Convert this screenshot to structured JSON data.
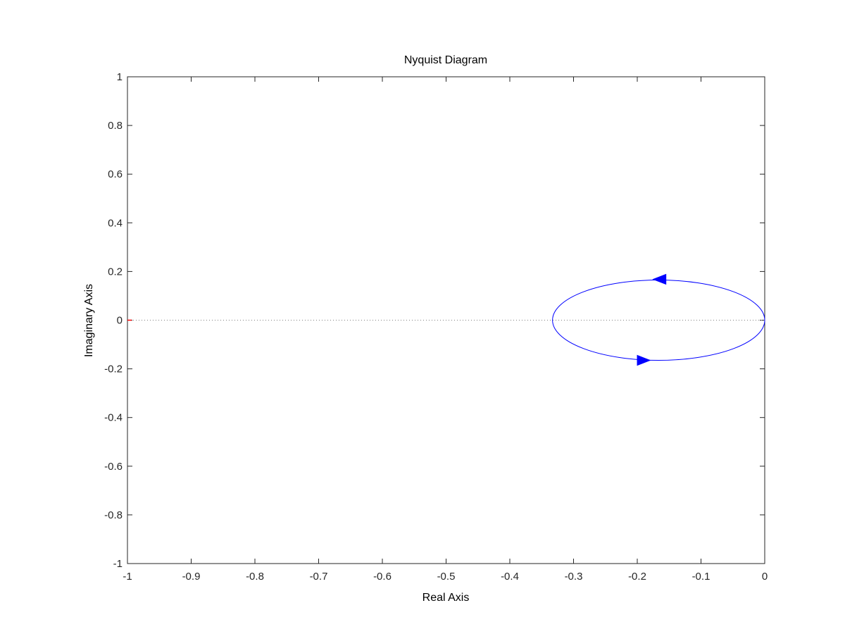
{
  "chart_data": {
    "type": "line",
    "title": "Nyquist Diagram",
    "xlabel": "Real Axis",
    "ylabel": "Imaginary Axis",
    "xlim": [
      -1,
      0
    ],
    "ylim": [
      -1,
      1
    ],
    "xticks": [
      -1,
      -0.9,
      -0.8,
      -0.7,
      -0.6,
      -0.5,
      -0.4,
      -0.3,
      -0.2,
      -0.1,
      0
    ],
    "xtick_labels": [
      "-1",
      "-0.9",
      "-0.8",
      "-0.7",
      "-0.6",
      "-0.5",
      "-0.4",
      "-0.3",
      "-0.2",
      "-0.1",
      "0"
    ],
    "yticks": [
      1,
      0.8,
      0.6,
      0.4,
      0.2,
      0,
      -0.2,
      -0.4,
      -0.6,
      -0.8,
      -1
    ],
    "ytick_labels": [
      "1",
      "0.8",
      "0.6",
      "0.4",
      "0.2",
      "0",
      "-0.2",
      "-0.4",
      "-0.6",
      "-0.8",
      "-1"
    ],
    "grid": false,
    "zero_line": {
      "y": 0,
      "style": "dotted",
      "color": "#808080"
    },
    "critical_point": {
      "x": -1,
      "y": 0,
      "color": "#ff0000"
    },
    "series": [
      {
        "color": "#0000ff",
        "shape": "ellipse",
        "center": [
          -0.1665,
          0
        ],
        "half_width": 0.1665,
        "half_height": 0.165,
        "points": [
          [
            0,
            0
          ],
          [
            -0.022,
            0.081
          ],
          [
            -0.083,
            0.143
          ],
          [
            -0.166,
            0.165
          ],
          [
            -0.249,
            0.143
          ],
          [
            -0.31,
            0.083
          ],
          [
            -0.333,
            0
          ],
          [
            -0.31,
            -0.083
          ],
          [
            -0.249,
            -0.143
          ],
          [
            -0.166,
            -0.165
          ],
          [
            -0.083,
            -0.143
          ],
          [
            -0.022,
            -0.081
          ],
          [
            0,
            0
          ]
        ],
        "direction_arrows": [
          {
            "x": -0.165,
            "y": 0.168,
            "dir": "left"
          },
          {
            "x": -0.19,
            "y": -0.165,
            "dir": "right"
          }
        ]
      }
    ]
  },
  "colors": {
    "axis": "#262626",
    "series": "#0000ff",
    "zero_line": "#808080",
    "critical_point": "#ff0000"
  }
}
